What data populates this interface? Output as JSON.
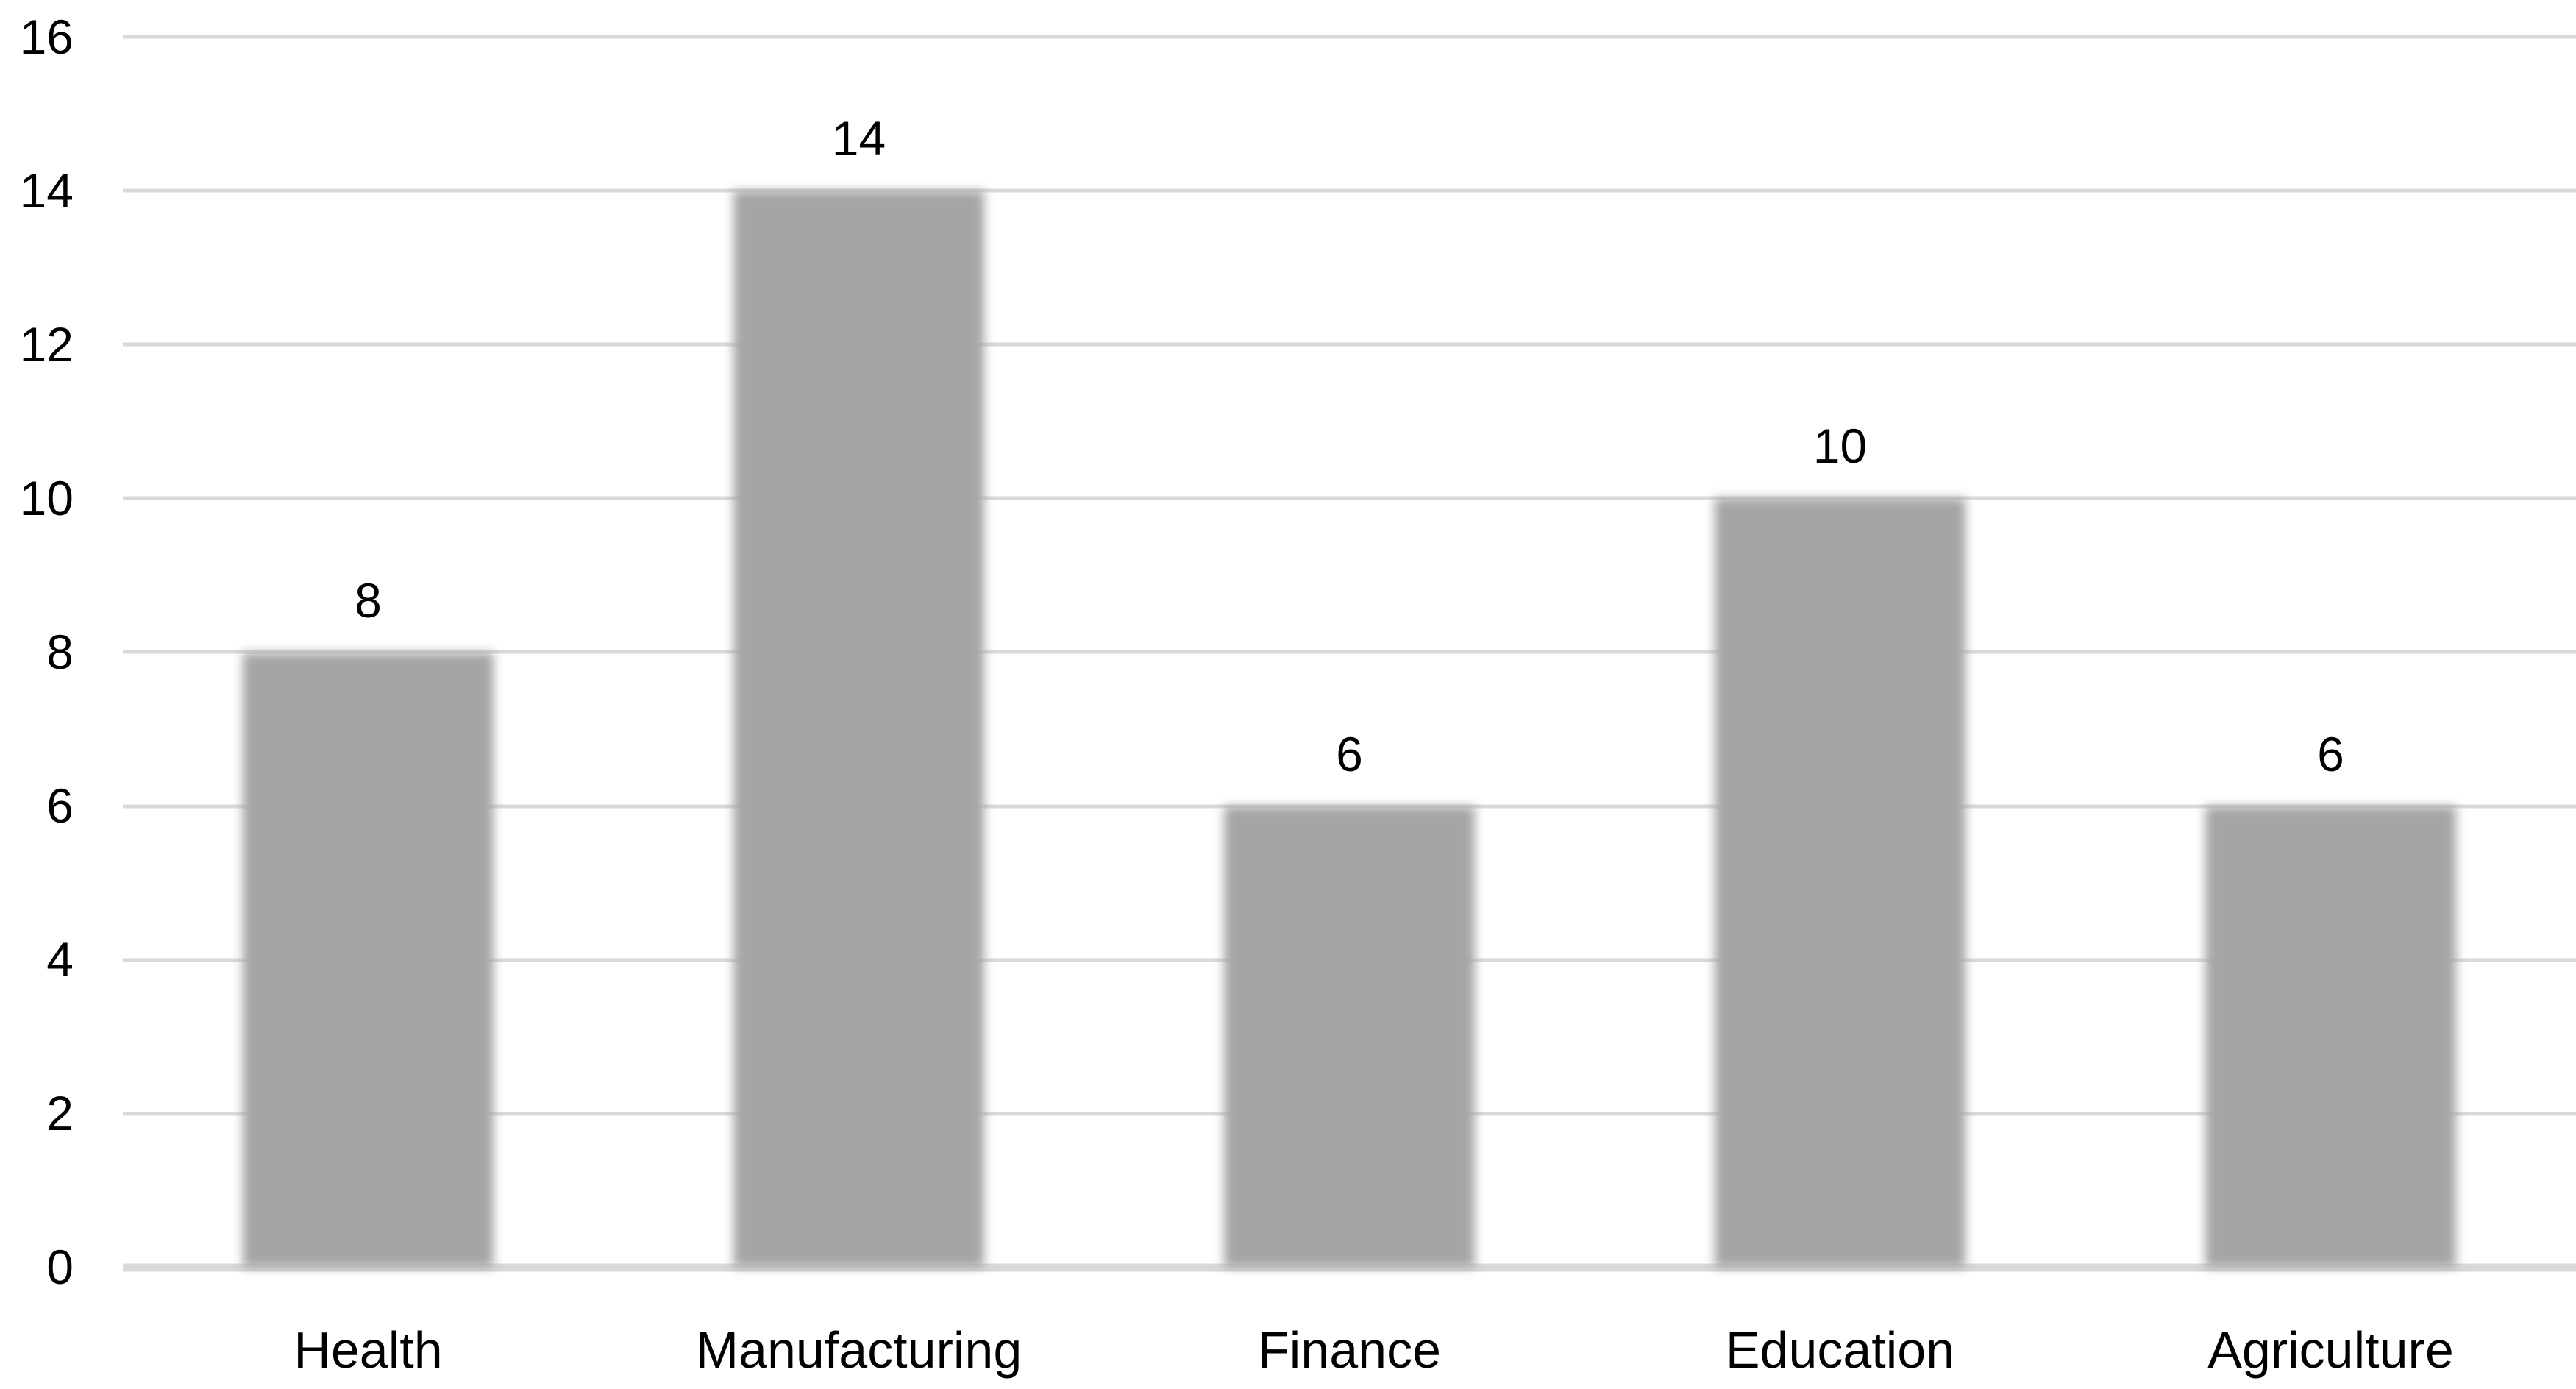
{
  "chart_data": {
    "type": "bar",
    "title": "",
    "xlabel": "",
    "ylabel": "",
    "categories": [
      "Health",
      "Manufacturing",
      "Finance",
      "Education",
      "Agriculture"
    ],
    "values": [
      8,
      14,
      6,
      10,
      6
    ],
    "data_labels": [
      "8",
      "14",
      "6",
      "10",
      "6"
    ],
    "ylim": [
      0,
      16
    ],
    "ytick_step": 2,
    "yticks": [
      "16",
      "14",
      "12",
      "10",
      "8",
      "6",
      "4",
      "2",
      "0"
    ],
    "grid": "horizontal-on",
    "legend": "none",
    "colors": {
      "bar_fill": "#a5a5a5",
      "gridline": "#d9d9d9",
      "axis_line": "#d9d9d9",
      "label_text": "#000000",
      "background": "#ffffff"
    }
  }
}
